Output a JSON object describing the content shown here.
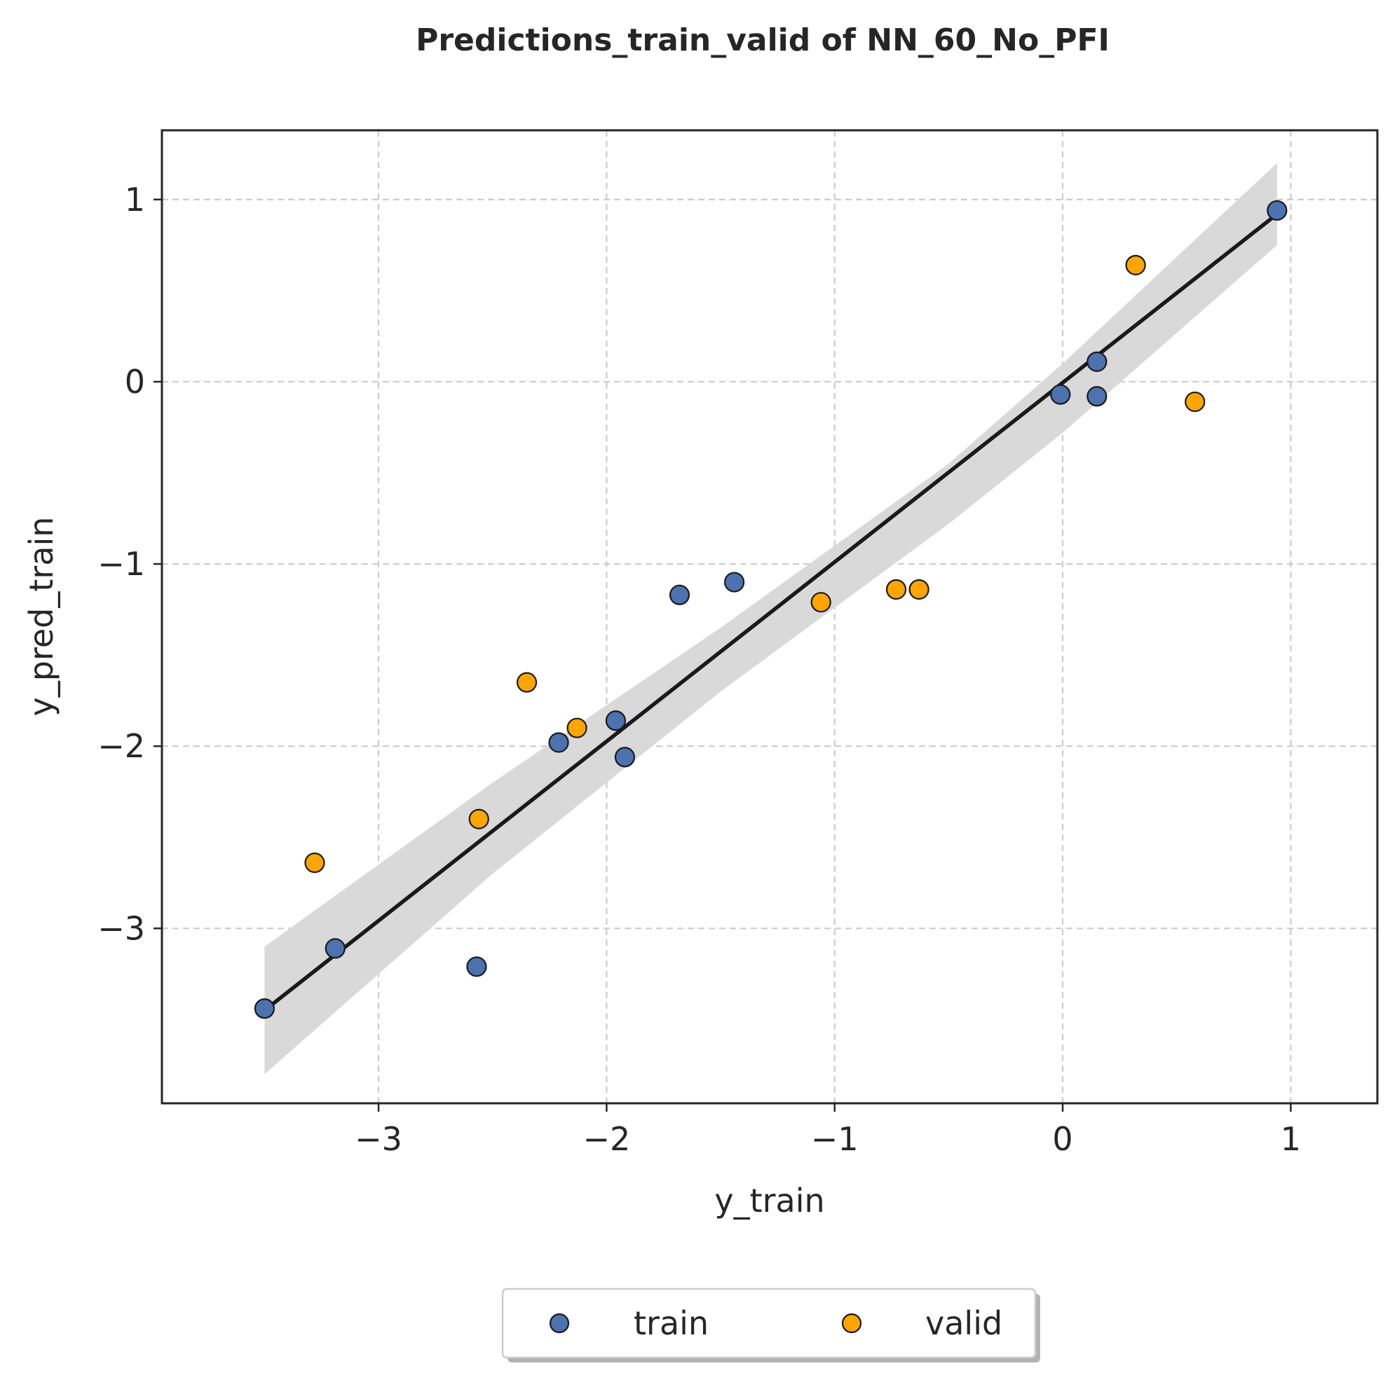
{
  "chart_data": {
    "type": "scatter",
    "title": "Predictions_train_valid of NN_60_No_PFI",
    "xlabel": "y_train",
    "ylabel": "y_pred_train",
    "xlim": [
      -3.95,
      1.38
    ],
    "ylim": [
      -3.96,
      1.38
    ],
    "grid": true,
    "legend_position": "bottom-center",
    "x_ticks": [
      {
        "value": -3,
        "label": "−3"
      },
      {
        "value": -2,
        "label": "−2"
      },
      {
        "value": -1,
        "label": "−1"
      },
      {
        "value": 0,
        "label": "0"
      },
      {
        "value": 1,
        "label": "1"
      }
    ],
    "y_ticks": [
      {
        "value": 1,
        "label": "1"
      },
      {
        "value": 0,
        "label": "0"
      },
      {
        "value": -1,
        "label": "−1"
      },
      {
        "value": -2,
        "label": "−2"
      },
      {
        "value": -3,
        "label": "−3"
      }
    ],
    "series": [
      {
        "name": "train",
        "color": "#4c72b0",
        "points": [
          [
            -3.5,
            -3.44
          ],
          [
            -3.19,
            -3.11
          ],
          [
            -2.57,
            -3.21
          ],
          [
            -2.21,
            -1.98
          ],
          [
            -1.96,
            -1.86
          ],
          [
            -1.92,
            -2.06
          ],
          [
            -1.68,
            -1.17
          ],
          [
            -1.44,
            -1.1
          ],
          [
            -0.01,
            -0.07
          ],
          [
            0.15,
            -0.08
          ],
          [
            0.15,
            0.11
          ],
          [
            0.94,
            0.94
          ]
        ]
      },
      {
        "name": "valid",
        "color": "#ffa500",
        "points": [
          [
            -3.28,
            -2.64
          ],
          [
            -2.56,
            -2.4
          ],
          [
            -2.35,
            -1.65
          ],
          [
            -2.13,
            -1.9
          ],
          [
            -1.06,
            -1.21
          ],
          [
            -0.73,
            -1.14
          ],
          [
            -0.63,
            -1.14
          ],
          [
            0.32,
            0.64
          ],
          [
            0.58,
            -0.11
          ]
        ]
      }
    ],
    "regression": {
      "color": "#1a1a1a",
      "band_color": "#d9d9d9",
      "line": [
        [
          -3.5,
          -3.45
        ],
        [
          0.94,
          0.92
        ]
      ],
      "band_upper": [
        [
          -3.5,
          -3.1
        ],
        [
          -2.5,
          -2.2
        ],
        [
          -1.5,
          -1.35
        ],
        [
          -0.5,
          -0.45
        ],
        [
          0.0,
          0.1
        ],
        [
          0.94,
          1.2
        ]
      ],
      "band_lower": [
        [
          -3.5,
          -3.8
        ],
        [
          -2.5,
          -2.7
        ],
        [
          -1.5,
          -1.7
        ],
        [
          -0.5,
          -0.78
        ],
        [
          0.0,
          -0.28
        ],
        [
          0.94,
          0.75
        ]
      ]
    }
  }
}
